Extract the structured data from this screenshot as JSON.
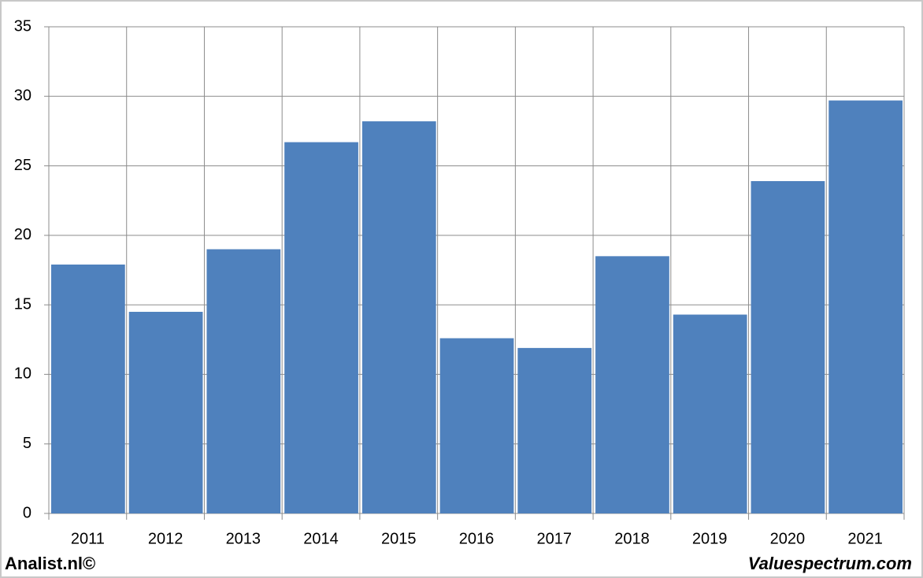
{
  "chart_data": {
    "type": "bar",
    "categories": [
      "2011",
      "2012",
      "2013",
      "2014",
      "2015",
      "2016",
      "2017",
      "2018",
      "2019",
      "2020",
      "2021"
    ],
    "values": [
      17.9,
      14.5,
      19.0,
      26.7,
      28.2,
      12.6,
      11.9,
      18.5,
      14.3,
      23.9,
      29.7
    ],
    "color": "#4f81bd",
    "ylim": [
      0,
      35
    ],
    "yticks": [
      0,
      5,
      10,
      15,
      20,
      25,
      30,
      35
    ],
    "grid": true,
    "annotations": [
      "Analist.nl©",
      "Valuespectrum.com"
    ]
  }
}
